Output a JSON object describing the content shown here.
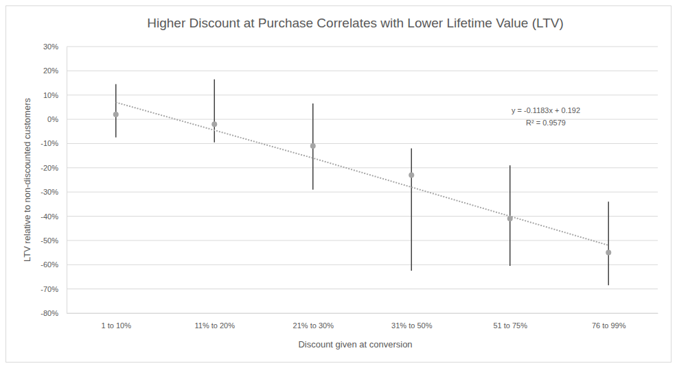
{
  "chart_data": {
    "type": "scatter",
    "title": "Higher Discount at Purchase Correlates with Lower Lifetime Value (LTV)",
    "x_label": "Discount given at conversion",
    "y_label": "LTV relative to non-discounted customers",
    "categories": [
      "1 to 10%",
      "11% to 20%",
      "21% to 30%",
      "31% to 50%",
      "51 to 75%",
      "76 to 99%"
    ],
    "series": [
      {
        "type": "scatter",
        "marker": "circle",
        "color": "#a5a5a5",
        "values": [
          2,
          -2,
          -11,
          -23,
          -41,
          -55
        ],
        "lower": [
          -7.5,
          -9.5,
          -29,
          -62.5,
          -60.5,
          -68.5
        ],
        "upper": [
          14.5,
          16.5,
          6.5,
          -12,
          -19,
          -34
        ]
      },
      {
        "type": "line",
        "line_style": "dotted",
        "color": "#a5a5a5",
        "values": [
          7,
          -4.5,
          -16,
          -28,
          -40,
          -52
        ]
      }
    ],
    "annotations": [
      "y = -0.1183x + 0.192",
      "R² = 0.9579"
    ],
    "ylim": [
      -80,
      30
    ],
    "yticks": [
      {
        "value": -80,
        "label": "-80%"
      },
      {
        "value": -70,
        "label": "-70%"
      },
      {
        "value": -60,
        "label": "-60%"
      },
      {
        "value": -50,
        "label": "-50%"
      },
      {
        "value": -40,
        "label": "-40%"
      },
      {
        "value": -30,
        "label": "-30%"
      },
      {
        "value": -20,
        "label": "-20%"
      },
      {
        "value": -10,
        "label": "-10%"
      },
      {
        "value": 0,
        "label": "0%"
      },
      {
        "value": 10,
        "label": "10%"
      },
      {
        "value": 20,
        "label": "20%"
      },
      {
        "value": 30,
        "label": "30%"
      }
    ],
    "grid": true
  }
}
